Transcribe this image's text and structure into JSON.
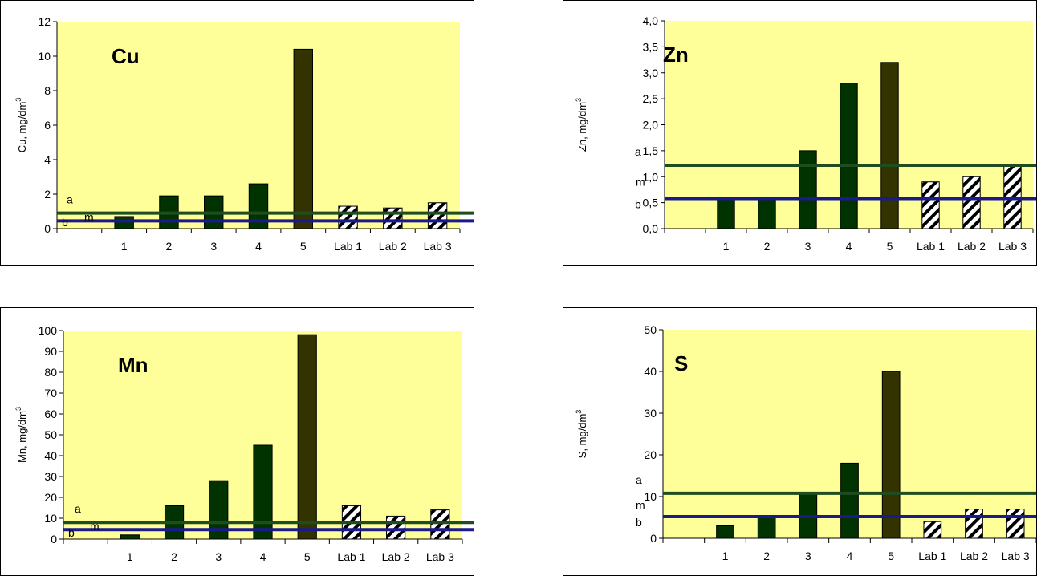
{
  "chart_data": [
    {
      "type": "bar",
      "title": "Cu",
      "ylabel": "Cu, mg/dm",
      "ylabel_sup": "3",
      "ylim": [
        0,
        12
      ],
      "yticks": [
        "0",
        "2",
        "4",
        "6",
        "8",
        "10",
        "12"
      ],
      "categories": [
        "",
        "1",
        "2",
        "3",
        "4",
        "5",
        "Lab 1",
        "Lab 2",
        "Lab 3"
      ],
      "values": [
        null,
        0.7,
        1.9,
        1.9,
        2.6,
        10.4,
        1.3,
        1.2,
        1.5
      ],
      "reference_lines": [
        {
          "value": 0.9,
          "color": "#1f4d1f"
        },
        {
          "value": 0.45,
          "color": "#1a1a8c"
        }
      ],
      "ref_labels": [
        "a",
        "m",
        "b"
      ],
      "grid": false
    },
    {
      "type": "bar",
      "title": "Zn",
      "ylabel": "Zn, mg/dm",
      "ylabel_sup": "3",
      "ylim": [
        0,
        4
      ],
      "yticks": [
        "0,0",
        "0,5",
        "1,0",
        "1,5",
        "2,0",
        "2,5",
        "3,0",
        "3,5",
        "4,0"
      ],
      "categories": [
        "",
        "1",
        "2",
        "3",
        "4",
        "5",
        "Lab 1",
        "Lab 2",
        "Lab 3"
      ],
      "values": [
        null,
        0.6,
        0.6,
        1.5,
        2.8,
        3.2,
        0.9,
        1.0,
        1.2
      ],
      "reference_lines": [
        {
          "value": 1.22,
          "color": "#1f4d1f"
        },
        {
          "value": 0.58,
          "color": "#1a1a8c"
        }
      ],
      "ref_labels": [
        "a",
        "m",
        "b"
      ],
      "grid": false
    },
    {
      "type": "bar",
      "title": "Mn",
      "ylabel": "Mn, mg/dm",
      "ylabel_sup": "3",
      "ylim": [
        0,
        100
      ],
      "yticks": [
        "0",
        "10",
        "20",
        "30",
        "40",
        "50",
        "60",
        "70",
        "80",
        "90",
        "100"
      ],
      "categories": [
        "",
        "1",
        "2",
        "3",
        "4",
        "5",
        "Lab 1",
        "Lab 2",
        "Lab 3"
      ],
      "values": [
        null,
        2,
        16,
        28,
        45,
        98,
        16,
        11,
        14
      ],
      "reference_lines": [
        {
          "value": 8,
          "color": "#1f4d1f"
        },
        {
          "value": 4.5,
          "color": "#1a1a8c"
        }
      ],
      "ref_labels": [
        "a",
        "m",
        "b"
      ],
      "grid": false
    },
    {
      "type": "bar",
      "title": "S",
      "ylabel": "S, mg/dm",
      "ylabel_sup": "3",
      "ylim": [
        0,
        50
      ],
      "yticks": [
        "0",
        "10",
        "20",
        "30",
        "40",
        "50"
      ],
      "categories": [
        "",
        "1",
        "2",
        "3",
        "4",
        "5",
        "Lab 1",
        "Lab 2",
        "Lab 3"
      ],
      "values": [
        null,
        3,
        5,
        11,
        18,
        40,
        4,
        7,
        7
      ],
      "reference_lines": [
        {
          "value": 10.8,
          "color": "#1f4d1f"
        },
        {
          "value": 5.2,
          "color": "#1a1a8c"
        }
      ],
      "ref_labels": [
        "a",
        "m",
        "b"
      ],
      "grid": false
    }
  ],
  "colors": {
    "plot_bg": "#ffff99",
    "bar_green": "#003300",
    "bar_dark": "#333300",
    "line_a": "#1f4d1f",
    "line_b": "#1a1a8c"
  }
}
